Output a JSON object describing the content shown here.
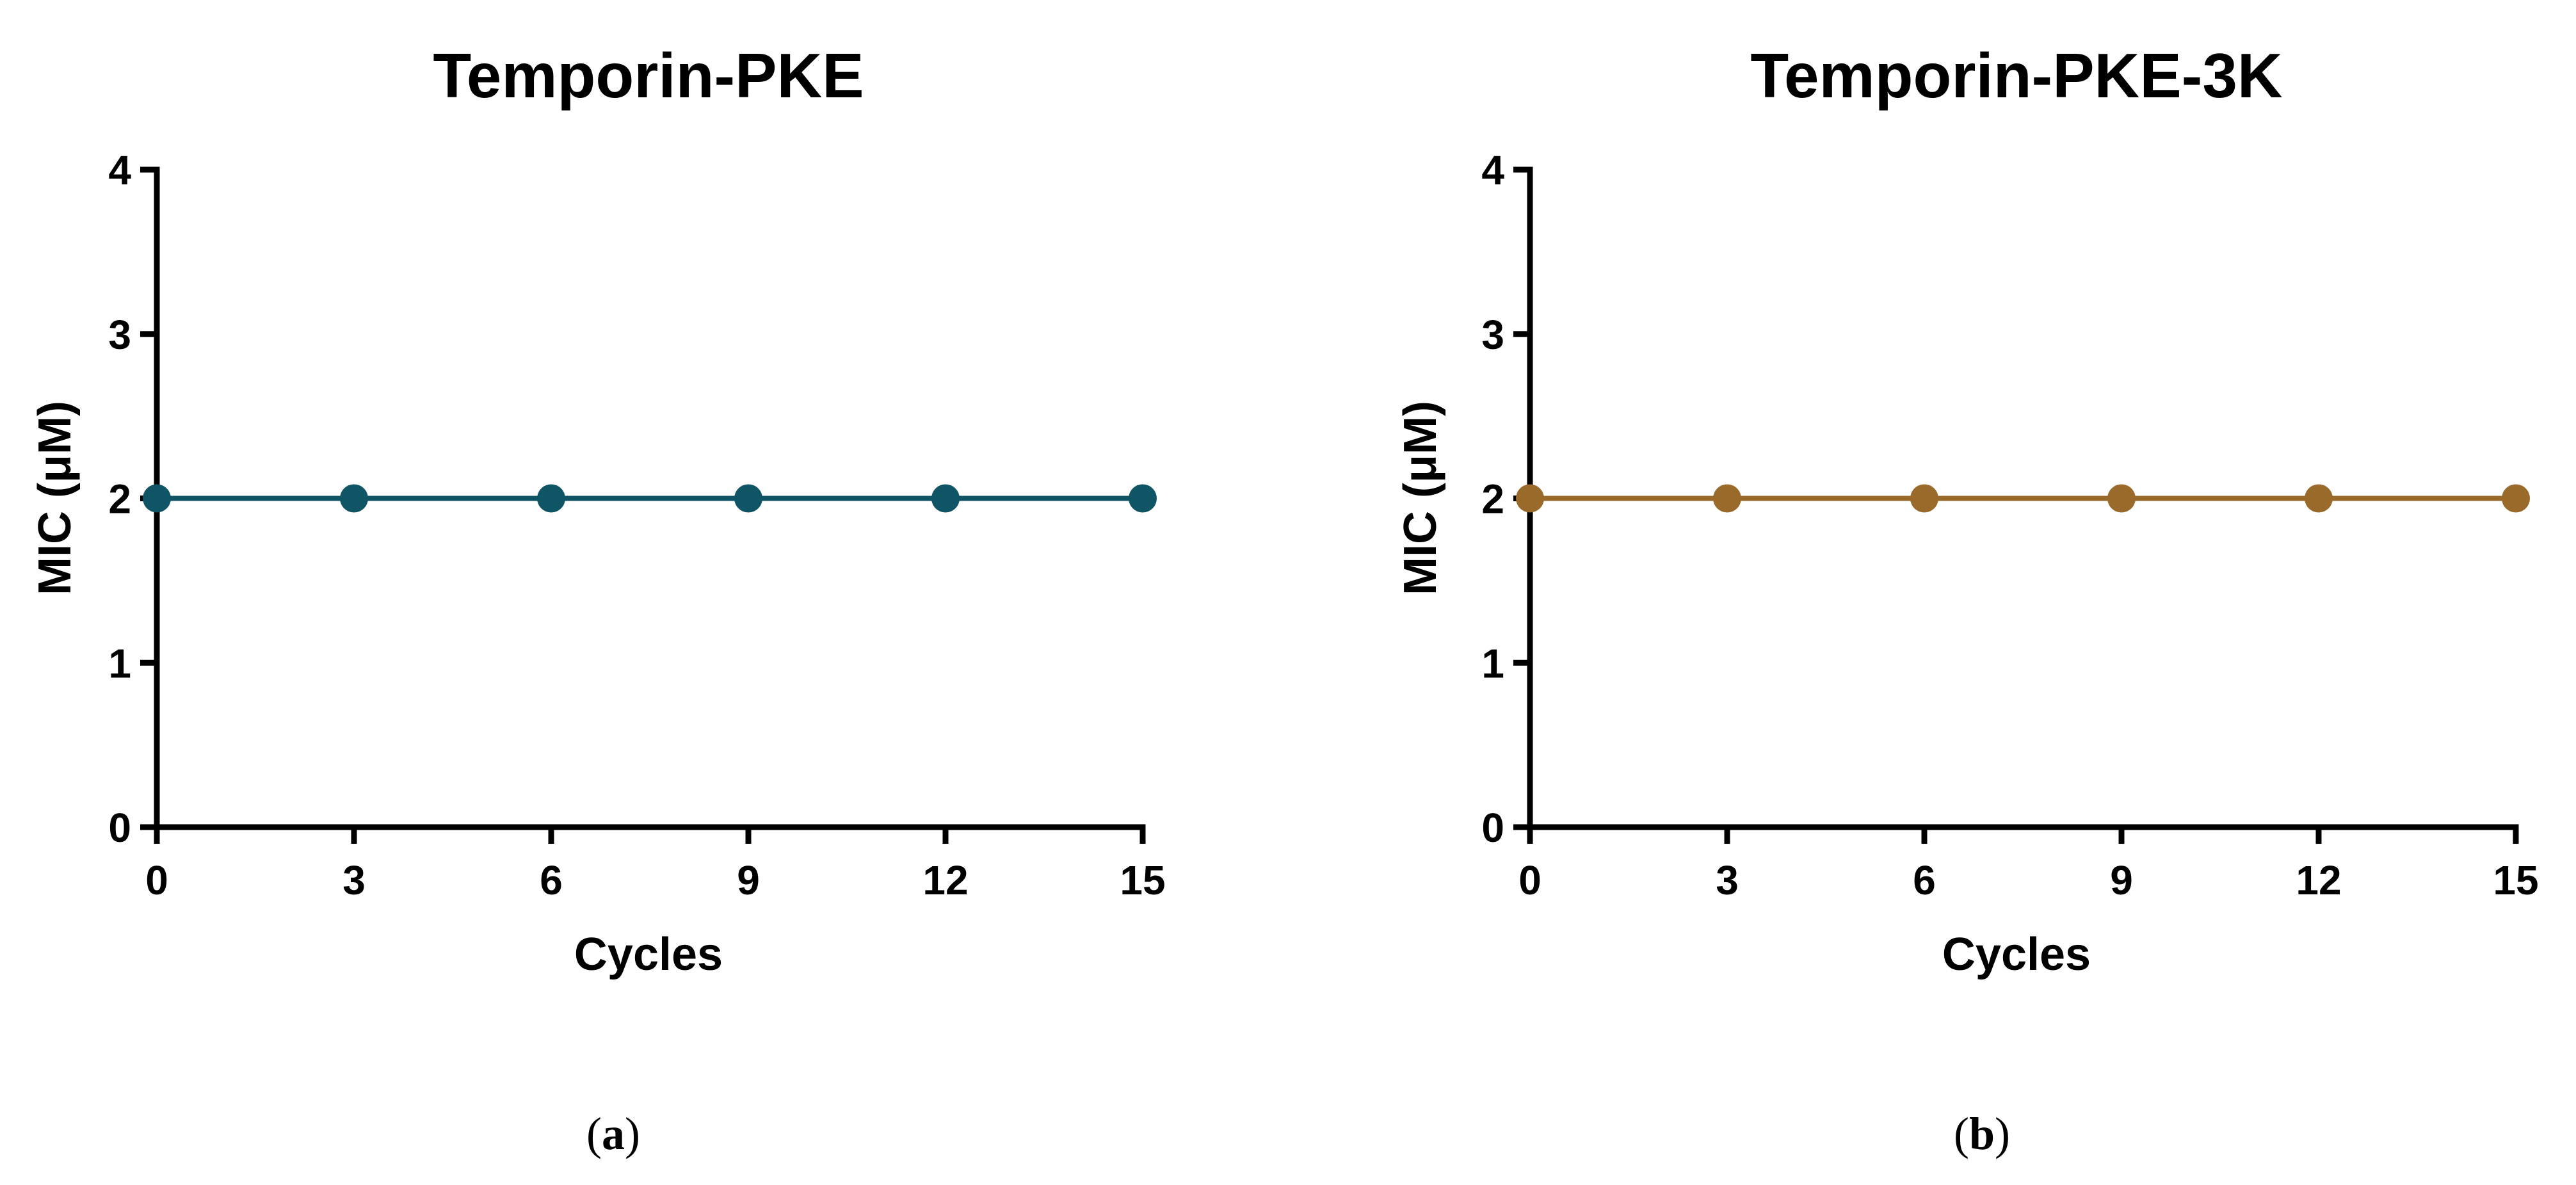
{
  "chart_data": [
    {
      "type": "line",
      "panel_label": "a",
      "title": "Temporin-PKE",
      "xlabel": "Cycles",
      "ylabel": "MIC (μM)",
      "x": [
        0,
        3,
        6,
        9,
        12,
        15
      ],
      "series": [
        {
          "color": "#0f5566",
          "values": [
            2,
            2,
            2,
            2,
            2,
            2
          ]
        }
      ],
      "xlim": [
        0,
        15
      ],
      "ylim": [
        0,
        4
      ],
      "xticks": [
        0,
        3,
        6,
        9,
        12,
        15
      ],
      "yticks": [
        0,
        1,
        2,
        3,
        4
      ],
      "grid": false
    },
    {
      "type": "line",
      "panel_label": "b",
      "title": "Temporin-PKE-3K",
      "xlabel": "Cycles",
      "ylabel": "MIC (μM)",
      "x": [
        0,
        3,
        6,
        9,
        12,
        15
      ],
      "series": [
        {
          "color": "#9a6a2a",
          "values": [
            2,
            2,
            2,
            2,
            2,
            2
          ]
        }
      ],
      "xlim": [
        0,
        15
      ],
      "ylim": [
        0,
        4
      ],
      "xticks": [
        0,
        3,
        6,
        9,
        12,
        15
      ],
      "yticks": [
        0,
        1,
        2,
        3,
        4
      ],
      "grid": false
    }
  ]
}
